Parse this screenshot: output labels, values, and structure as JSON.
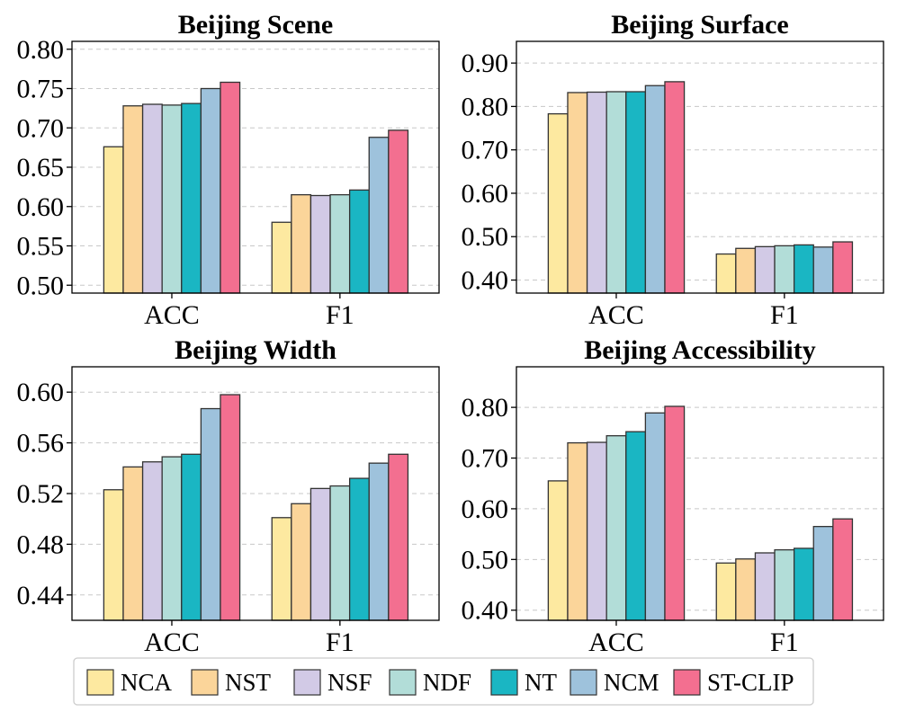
{
  "chart_data": [
    {
      "type": "bar",
      "title": "Beijing Scene",
      "categories": [
        "ACC",
        "F1"
      ],
      "ylim": [
        0.49,
        0.81
      ],
      "yticks": [
        0.5,
        0.55,
        0.6,
        0.65,
        0.7,
        0.75,
        0.8
      ],
      "ytick_labels": [
        "0.50",
        "0.55",
        "0.60",
        "0.65",
        "0.70",
        "0.75",
        "0.80"
      ],
      "grid": true,
      "series": [
        {
          "name": "NCA",
          "values": [
            0.676,
            0.58
          ]
        },
        {
          "name": "NST",
          "values": [
            0.728,
            0.615
          ]
        },
        {
          "name": "NSF",
          "values": [
            0.73,
            0.614
          ]
        },
        {
          "name": "NDF",
          "values": [
            0.729,
            0.615
          ]
        },
        {
          "name": "NT",
          "values": [
            0.731,
            0.621
          ]
        },
        {
          "name": "NCM",
          "values": [
            0.75,
            0.688
          ]
        },
        {
          "name": "ST-CLIP",
          "values": [
            0.758,
            0.697
          ]
        }
      ]
    },
    {
      "type": "bar",
      "title": "Beijing Surface",
      "categories": [
        "ACC",
        "F1"
      ],
      "ylim": [
        0.37,
        0.95
      ],
      "yticks": [
        0.4,
        0.5,
        0.6,
        0.7,
        0.8,
        0.9
      ],
      "ytick_labels": [
        "0.40",
        "0.50",
        "0.60",
        "0.70",
        "0.80",
        "0.90"
      ],
      "grid": true,
      "series": [
        {
          "name": "NCA",
          "values": [
            0.783,
            0.46
          ]
        },
        {
          "name": "NST",
          "values": [
            0.832,
            0.473
          ]
        },
        {
          "name": "NSF",
          "values": [
            0.833,
            0.477
          ]
        },
        {
          "name": "NDF",
          "values": [
            0.834,
            0.479
          ]
        },
        {
          "name": "NT",
          "values": [
            0.834,
            0.481
          ]
        },
        {
          "name": "NCM",
          "values": [
            0.848,
            0.476
          ]
        },
        {
          "name": "ST-CLIP",
          "values": [
            0.857,
            0.488
          ]
        }
      ]
    },
    {
      "type": "bar",
      "title": "Beijing Width",
      "categories": [
        "ACC",
        "F1"
      ],
      "ylim": [
        0.42,
        0.62
      ],
      "yticks": [
        0.44,
        0.48,
        0.52,
        0.56,
        0.6
      ],
      "ytick_labels": [
        "0.44",
        "0.48",
        "0.52",
        "0.56",
        "0.60"
      ],
      "grid": true,
      "series": [
        {
          "name": "NCA",
          "values": [
            0.523,
            0.501
          ]
        },
        {
          "name": "NST",
          "values": [
            0.541,
            0.512
          ]
        },
        {
          "name": "NSF",
          "values": [
            0.545,
            0.524
          ]
        },
        {
          "name": "NDF",
          "values": [
            0.549,
            0.526
          ]
        },
        {
          "name": "NT",
          "values": [
            0.551,
            0.532
          ]
        },
        {
          "name": "NCM",
          "values": [
            0.587,
            0.544
          ]
        },
        {
          "name": "ST-CLIP",
          "values": [
            0.598,
            0.551
          ]
        }
      ]
    },
    {
      "type": "bar",
      "title": "Beijing Accessibility",
      "categories": [
        "ACC",
        "F1"
      ],
      "ylim": [
        0.38,
        0.88
      ],
      "yticks": [
        0.4,
        0.5,
        0.6,
        0.7,
        0.8
      ],
      "ytick_labels": [
        "0.40",
        "0.50",
        "0.60",
        "0.70",
        "0.80"
      ],
      "grid": true,
      "series": [
        {
          "name": "NCA",
          "values": [
            0.655,
            0.493
          ]
        },
        {
          "name": "NST",
          "values": [
            0.73,
            0.501
          ]
        },
        {
          "name": "NSF",
          "values": [
            0.731,
            0.513
          ]
        },
        {
          "name": "NDF",
          "values": [
            0.744,
            0.519
          ]
        },
        {
          "name": "NT",
          "values": [
            0.752,
            0.522
          ]
        },
        {
          "name": "NCM",
          "values": [
            0.789,
            0.565
          ]
        },
        {
          "name": "ST-CLIP",
          "values": [
            0.802,
            0.58
          ]
        }
      ]
    }
  ],
  "legend": {
    "placement": "bottom-center",
    "items": [
      {
        "name": "NCA",
        "color": "#fde9a0"
      },
      {
        "name": "NST",
        "color": "#fbd59a"
      },
      {
        "name": "NSF",
        "color": "#d2cae6"
      },
      {
        "name": "NDF",
        "color": "#b2ddd8"
      },
      {
        "name": "NT",
        "color": "#1ab6c3"
      },
      {
        "name": "NCM",
        "color": "#9ec2dc"
      },
      {
        "name": "ST-CLIP",
        "color": "#f36f90"
      }
    ]
  },
  "colors": {
    "NCA": "#fde9a0",
    "NST": "#fbd59a",
    "NSF": "#d2cae6",
    "NDF": "#b2ddd8",
    "NT": "#1ab6c3",
    "NCM": "#9ec2dc",
    "ST-CLIP": "#f36f90",
    "grid": "#c8c8c8",
    "bar_edge": "#333333"
  }
}
